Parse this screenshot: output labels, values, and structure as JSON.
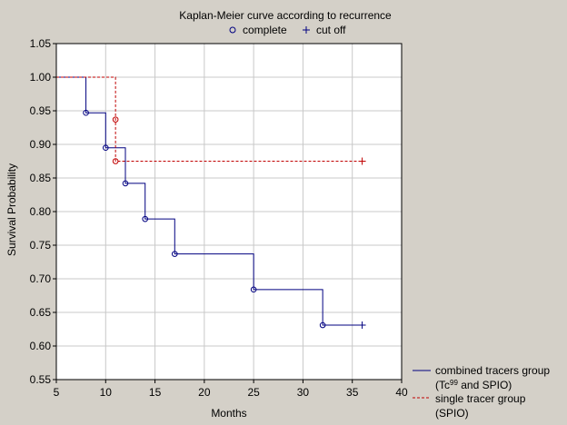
{
  "chart_data": {
    "type": "line",
    "title": "Kaplan-Meier curve according to recurrence",
    "xlabel": "Months",
    "ylabel": "Survival Probability",
    "xlim": [
      5,
      40
    ],
    "ylim": [
      0.55,
      1.05
    ],
    "xticks": [
      5,
      10,
      15,
      20,
      25,
      30,
      35,
      40
    ],
    "yticks": [
      0.55,
      0.6,
      0.65,
      0.7,
      0.75,
      0.8,
      0.85,
      0.9,
      0.95,
      1.0,
      1.05
    ],
    "grid": true,
    "marker_legend": {
      "complete_label": "complete",
      "complete_symbol": "o",
      "censored_label": "cut off",
      "censored_symbol": "+"
    },
    "series": [
      {
        "name": "combined tracers group",
        "legend_line1": "combined tracers group",
        "legend_line2_pre": "(Tc",
        "legend_line2_sup": "99",
        "legend_line2_post": " and SPIO)",
        "color": "#000080",
        "dash": "solid",
        "steps": [
          [
            5,
            1.0
          ],
          [
            8,
            0.947
          ],
          [
            10,
            0.895
          ],
          [
            12,
            0.842
          ],
          [
            14,
            0.789
          ],
          [
            17,
            0.737
          ],
          [
            25,
            0.684
          ],
          [
            32,
            0.631
          ],
          [
            36,
            0.631
          ]
        ],
        "events": [
          [
            8,
            0.947
          ],
          [
            10,
            0.895
          ],
          [
            12,
            0.842
          ],
          [
            14,
            0.789
          ],
          [
            17,
            0.737
          ],
          [
            25,
            0.684
          ],
          [
            32,
            0.631
          ]
        ],
        "censored": [
          [
            36,
            0.631
          ]
        ]
      },
      {
        "name": "single tracer group",
        "legend_line1": "single tracer group",
        "legend_line2": "(SPIO)",
        "color": "#c00000",
        "dash": "dashed",
        "steps": [
          [
            5,
            1.0
          ],
          [
            11,
            0.875
          ],
          [
            36,
            0.875
          ]
        ],
        "events": [
          [
            11,
            0.937
          ],
          [
            11,
            0.875
          ]
        ],
        "censored": [
          [
            36,
            0.875
          ]
        ]
      }
    ]
  }
}
